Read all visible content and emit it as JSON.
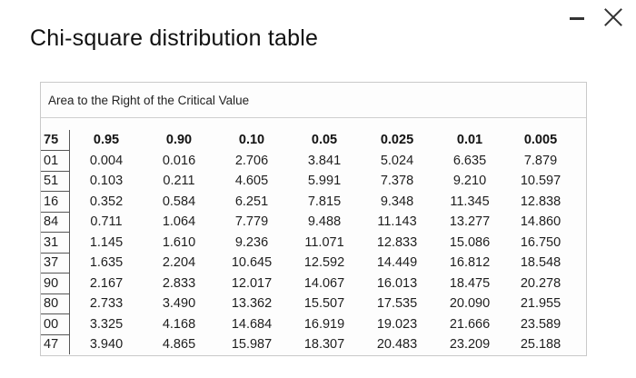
{
  "window": {
    "minimize_icon": "minimize-icon",
    "close_icon": "close-icon"
  },
  "title": "Chi-square distribution table",
  "panel_header": "Area to the Right of the Critical Value",
  "table": {
    "df_header": "75",
    "columns": [
      "0.95",
      "0.90",
      "0.10",
      "0.05",
      "0.025",
      "0.01",
      "0.005"
    ],
    "rows": [
      {
        "df": "01",
        "values": [
          "0.004",
          "0.016",
          "2.706",
          "3.841",
          "5.024",
          "6.635",
          "7.879"
        ]
      },
      {
        "df": "51",
        "values": [
          "0.103",
          "0.211",
          "4.605",
          "5.991",
          "7.378",
          "9.210",
          "10.597"
        ]
      },
      {
        "df": "16",
        "values": [
          "0.352",
          "0.584",
          "6.251",
          "7.815",
          "9.348",
          "11.345",
          "12.838"
        ]
      },
      {
        "df": "84",
        "values": [
          "0.711",
          "1.064",
          "7.779",
          "9.488",
          "11.143",
          "13.277",
          "14.860"
        ]
      },
      {
        "df": "31",
        "values": [
          "1.145",
          "1.610",
          "9.236",
          "11.071",
          "12.833",
          "15.086",
          "16.750"
        ]
      },
      {
        "df": "37",
        "values": [
          "1.635",
          "2.204",
          "10.645",
          "12.592",
          "14.449",
          "16.812",
          "18.548"
        ]
      },
      {
        "df": "90",
        "values": [
          "2.167",
          "2.833",
          "12.017",
          "14.067",
          "16.013",
          "18.475",
          "20.278"
        ]
      },
      {
        "df": "80",
        "values": [
          "2.733",
          "3.490",
          "13.362",
          "15.507",
          "17.535",
          "20.090",
          "21.955"
        ]
      },
      {
        "df": "00",
        "values": [
          "3.325",
          "4.168",
          "14.684",
          "16.919",
          "19.023",
          "21.666",
          "23.589"
        ]
      },
      {
        "df": "47",
        "values": [
          "3.940",
          "4.865",
          "15.987",
          "18.307",
          "20.483",
          "23.209",
          "25.188"
        ]
      }
    ]
  }
}
